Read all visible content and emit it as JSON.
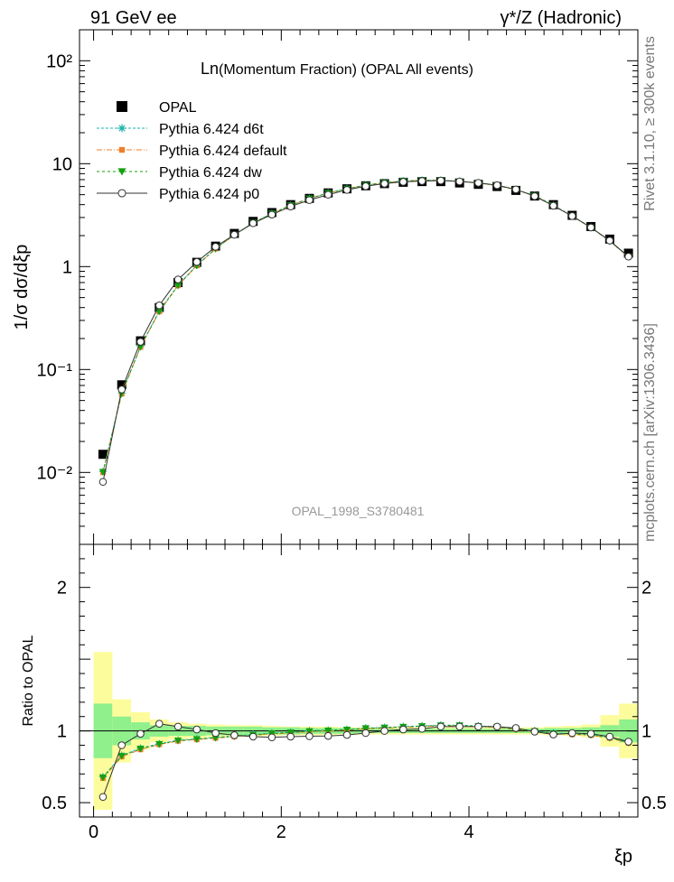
{
  "header": {
    "left": "91 GeV ee",
    "right": "γ*/Z (Hadronic)"
  },
  "side_labels": {
    "rivet": "Rivet 3.1.10, ≥ 300k events",
    "mcplots": "mcplots.cern.ch [arXiv:1306.3436]"
  },
  "watermark": "OPAL_1998_S3780481",
  "chart_data": [
    {
      "type": "scatter",
      "title_main": "Ln",
      "title_rest": "(Momentum Fraction) (OPAL All events)",
      "ylabel": "1/σ dσ/dξp",
      "yscale": "log",
      "ylim": [
        0.002,
        200
      ],
      "xlim": [
        -0.15,
        5.8
      ],
      "yticks": [
        {
          "value": 0.01,
          "label": "10⁻²"
        },
        {
          "value": 0.1,
          "label": "10⁻¹"
        },
        {
          "value": 1,
          "label": "1"
        },
        {
          "value": 10,
          "label": "10"
        },
        {
          "value": 100,
          "label": "10²"
        }
      ],
      "x": [
        0.1,
        0.3,
        0.5,
        0.7,
        0.9,
        1.1,
        1.3,
        1.5,
        1.7,
        1.9,
        2.1,
        2.3,
        2.5,
        2.7,
        2.9,
        3.1,
        3.3,
        3.5,
        3.7,
        3.9,
        4.1,
        4.3,
        4.5,
        4.7,
        4.9,
        5.1,
        5.3,
        5.5,
        5.7
      ],
      "series": [
        {
          "name": "OPAL",
          "color": "#000000",
          "marker": "square",
          "values": [
            0.015,
            0.071,
            0.19,
            0.4,
            0.7,
            1.1,
            1.58,
            2.1,
            2.75,
            3.35,
            4.0,
            4.6,
            5.2,
            5.7,
            6.1,
            6.4,
            6.6,
            6.7,
            6.7,
            6.5,
            6.3,
            6.0,
            5.5,
            4.85,
            4.0,
            3.15,
            2.45,
            1.85,
            1.35
          ]
        },
        {
          "name": "Pythia 6.424 d6t",
          "color": "#1bb1a9",
          "marker": "star",
          "dash": "3,2",
          "values": [
            0.0102,
            0.059,
            0.167,
            0.37,
            0.66,
            1.03,
            1.5,
            2.04,
            2.67,
            3.28,
            3.95,
            4.6,
            5.2,
            5.72,
            6.2,
            6.55,
            6.8,
            6.9,
            6.9,
            6.75,
            6.5,
            6.15,
            5.6,
            4.9,
            3.95,
            3.1,
            2.4,
            1.78,
            1.25
          ]
        },
        {
          "name": "Pythia 6.424 default",
          "color": "#f07f2a",
          "marker": "square-small",
          "dash": "6,2,1,2",
          "values": [
            0.01,
            0.058,
            0.165,
            0.365,
            0.655,
            1.02,
            1.49,
            2.03,
            2.66,
            3.27,
            3.94,
            4.59,
            5.18,
            5.7,
            6.18,
            6.52,
            6.78,
            6.88,
            6.88,
            6.72,
            6.48,
            6.12,
            5.58,
            4.88,
            3.93,
            3.08,
            2.39,
            1.77,
            1.24
          ]
        },
        {
          "name": "Pythia 6.424 dw",
          "color": "#14a00f",
          "marker": "triangle-down",
          "dash": "3,3",
          "values": [
            0.0101,
            0.0585,
            0.166,
            0.367,
            0.657,
            1.025,
            1.495,
            2.035,
            2.665,
            3.275,
            3.945,
            4.595,
            5.19,
            5.71,
            6.19,
            6.53,
            6.79,
            6.89,
            6.89,
            6.73,
            6.49,
            6.13,
            5.59,
            4.89,
            3.94,
            3.09,
            2.395,
            1.775,
            1.245
          ]
        },
        {
          "name": "Pythia 6.424 p0",
          "color": "#333333",
          "marker": "circle-open",
          "values": [
            0.0081,
            0.064,
            0.186,
            0.42,
            0.75,
            1.11,
            1.56,
            2.04,
            2.64,
            3.2,
            3.84,
            4.43,
            5.0,
            5.56,
            6.04,
            6.4,
            6.66,
            6.78,
            6.85,
            6.72,
            6.52,
            6.18,
            5.62,
            4.83,
            3.9,
            3.1,
            2.4,
            1.79,
            1.25
          ]
        }
      ]
    },
    {
      "type": "scatter",
      "ylabel": "Ratio to OPAL",
      "xlabel": "ξp",
      "ylim": [
        0.4,
        2.3
      ],
      "xlim": [
        -0.15,
        5.8
      ],
      "xticks": [
        0,
        2,
        4
      ],
      "yticks": [
        0.5,
        1,
        2
      ],
      "reference": 1,
      "bands": {
        "x_edges": [
          0,
          0.2,
          0.4,
          0.6,
          0.8,
          1.0,
          1.2,
          1.4,
          1.6,
          1.8,
          2.0,
          2.2,
          2.4,
          2.6,
          2.8,
          3.0,
          3.2,
          3.4,
          3.6,
          3.8,
          4.0,
          4.2,
          4.4,
          4.6,
          4.8,
          5.0,
          5.2,
          5.4,
          5.6,
          5.8
        ],
        "yellow_halfwidth": [
          0.55,
          0.22,
          0.13,
          0.08,
          0.06,
          0.05,
          0.045,
          0.04,
          0.04,
          0.035,
          0.03,
          0.03,
          0.03,
          0.025,
          0.025,
          0.025,
          0.025,
          0.025,
          0.025,
          0.025,
          0.025,
          0.025,
          0.025,
          0.025,
          0.03,
          0.035,
          0.045,
          0.11,
          0.19
        ],
        "green_halfwidth": [
          0.19,
          0.1,
          0.06,
          0.04,
          0.035,
          0.035,
          0.03,
          0.03,
          0.03,
          0.025,
          0.025,
          0.02,
          0.02,
          0.02,
          0.015,
          0.015,
          0.015,
          0.015,
          0.015,
          0.015,
          0.015,
          0.015,
          0.015,
          0.015,
          0.02,
          0.02,
          0.025,
          0.04,
          0.08
        ]
      },
      "x": [
        0.1,
        0.3,
        0.5,
        0.7,
        0.9,
        1.1,
        1.3,
        1.5,
        1.7,
        1.9,
        2.1,
        2.3,
        2.5,
        2.7,
        2.9,
        3.1,
        3.3,
        3.5,
        3.7,
        3.9,
        4.1,
        4.3,
        4.5,
        4.7,
        4.9,
        5.1,
        5.3,
        5.5,
        5.7
      ],
      "series": [
        {
          "name": "Pythia 6.424 d6t",
          "color": "#1bb1a9",
          "marker": "star",
          "dash": "3,2",
          "values": [
            0.68,
            0.83,
            0.88,
            0.91,
            0.935,
            0.945,
            0.955,
            0.965,
            0.975,
            0.985,
            0.99,
            1.0,
            1.005,
            1.01,
            1.02,
            1.025,
            1.03,
            1.035,
            1.04,
            1.04,
            1.035,
            1.03,
            1.015,
            1.0,
            0.985,
            0.98,
            0.975,
            0.955,
            0.92
          ]
        },
        {
          "name": "Pythia 6.424 default",
          "color": "#f07f2a",
          "marker": "square-small",
          "dash": "6,2,1,2",
          "values": [
            0.67,
            0.82,
            0.87,
            0.905,
            0.93,
            0.94,
            0.95,
            0.96,
            0.97,
            0.98,
            0.985,
            0.995,
            1.0,
            1.005,
            1.015,
            1.02,
            1.025,
            1.03,
            1.035,
            1.035,
            1.03,
            1.025,
            1.01,
            0.995,
            0.98,
            0.975,
            0.97,
            0.95,
            0.915
          ]
        },
        {
          "name": "Pythia 6.424 dw",
          "color": "#14a00f",
          "marker": "triangle-down",
          "dash": "3,3",
          "values": [
            0.675,
            0.825,
            0.875,
            0.908,
            0.932,
            0.942,
            0.952,
            0.962,
            0.972,
            0.982,
            0.988,
            0.998,
            1.002,
            1.008,
            1.018,
            1.022,
            1.028,
            1.032,
            1.038,
            1.038,
            1.032,
            1.028,
            1.012,
            0.998,
            0.982,
            0.978,
            0.972,
            0.952,
            0.918
          ]
        },
        {
          "name": "Pythia 6.424 p0",
          "color": "#333333",
          "marker": "circle-open",
          "values": [
            0.54,
            0.9,
            0.98,
            1.05,
            1.03,
            1.01,
            0.985,
            0.97,
            0.96,
            0.955,
            0.96,
            0.963,
            0.965,
            0.972,
            0.985,
            1.0,
            1.01,
            1.015,
            1.03,
            1.03,
            1.03,
            1.03,
            1.02,
            0.995,
            0.975,
            0.985,
            0.98,
            0.96,
            0.925
          ]
        }
      ]
    }
  ]
}
